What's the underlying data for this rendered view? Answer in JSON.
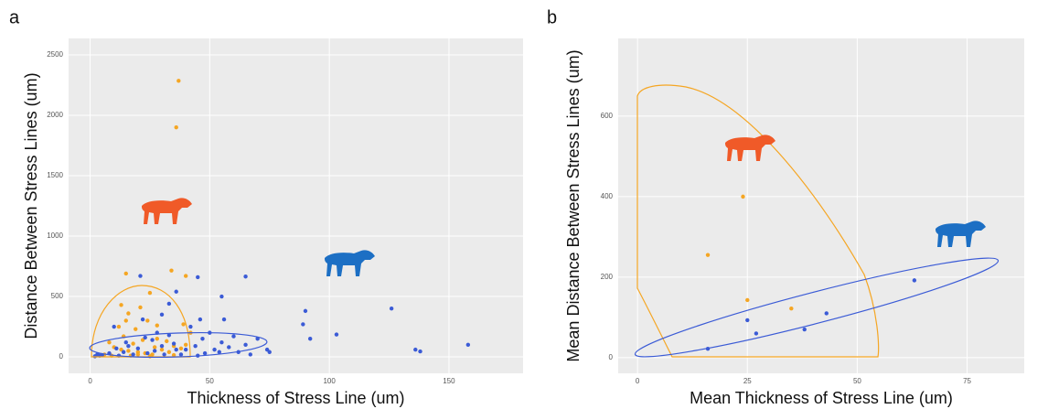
{
  "chart_data": [
    {
      "type": "scatter",
      "label": "a",
      "x_label": "Thickness of Stress Line (um)",
      "y_label": "Distance  Between Stress Lines (um)",
      "xlim": [
        -9,
        181
      ],
      "ylim": [
        -136,
        2636
      ],
      "xticks": [
        0,
        50,
        100,
        150
      ],
      "yticks": [
        0,
        500,
        1000,
        1500,
        2000,
        2500
      ],
      "grid": true,
      "series": [
        {
          "color": "#f5a623",
          "x": [
            37,
            36,
            15,
            34,
            40,
            25,
            13,
            21,
            16,
            15,
            24,
            12,
            19,
            28,
            39,
            42,
            8,
            10,
            13,
            16,
            20,
            23,
            26,
            30,
            33,
            35,
            18,
            22,
            28,
            14,
            6,
            9,
            27,
            32,
            38,
            40,
            20,
            17,
            25,
            35
          ],
          "values": [
            2285,
            1900,
            690,
            715,
            670,
            530,
            430,
            410,
            360,
            300,
            300,
            250,
            230,
            260,
            270,
            200,
            120,
            80,
            60,
            50,
            40,
            30,
            20,
            60,
            40,
            90,
            110,
            140,
            150,
            170,
            20,
            10,
            80,
            130,
            70,
            100,
            20,
            10,
            5,
            15
          ]
        },
        {
          "color": "#3b5bd6",
          "x": [
            21,
            45,
            65,
            36,
            55,
            33,
            30,
            22,
            10,
            90,
            126,
            89,
            92,
            103,
            136,
            138,
            158,
            60,
            70,
            75,
            74,
            65,
            55,
            50,
            47,
            44,
            40,
            38,
            35,
            30,
            27,
            24,
            20,
            18,
            14,
            12,
            8,
            5,
            2,
            4,
            48,
            52,
            58,
            62,
            67,
            45,
            28,
            15,
            42,
            54,
            33,
            36,
            26,
            11,
            16,
            46,
            56,
            23,
            31,
            3
          ],
          "values": [
            670,
            660,
            665,
            540,
            500,
            440,
            350,
            310,
            250,
            380,
            400,
            270,
            150,
            185,
            60,
            45,
            100,
            170,
            150,
            40,
            60,
            100,
            120,
            200,
            150,
            90,
            60,
            20,
            110,
            90,
            50,
            30,
            70,
            20,
            40,
            10,
            30,
            15,
            5,
            10,
            30,
            60,
            80,
            40,
            20,
            10,
            200,
            120,
            250,
            40,
            180,
            60,
            140,
            70,
            90,
            310,
            310,
            160,
            20,
            20
          ]
        }
      ]
    },
    {
      "type": "scatter",
      "label": "b",
      "x_label": "Mean Thickness of Stress Line (um)",
      "y_label": "Mean Distance  Between Stress Lines (um)",
      "xlim": [
        -4.4,
        88
      ],
      "ylim": [
        -39,
        793
      ],
      "xticks": [
        0,
        25,
        50,
        75
      ],
      "yticks": [
        0,
        200,
        400,
        600
      ],
      "grid": true,
      "series": [
        {
          "color": "#f5a623",
          "x": [
            24,
            16,
            25,
            35
          ],
          "values": [
            400,
            255,
            143,
            122
          ]
        },
        {
          "color": "#3b5bd6",
          "x": [
            16,
            25,
            27,
            38,
            43,
            63
          ],
          "values": [
            22,
            93,
            60,
            70,
            110,
            192
          ]
        }
      ]
    }
  ]
}
